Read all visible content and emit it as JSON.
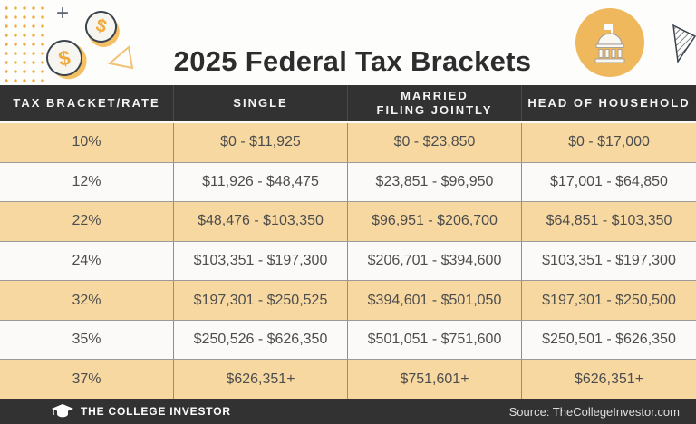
{
  "title": "2025 Federal Tax Brackets",
  "table": {
    "columns": [
      "TAX BRACKET/RATE",
      "SINGLE",
      "MARRIED\nFILING JOINTLY",
      "HEAD OF HOUSEHOLD"
    ],
    "rows": [
      {
        "rate": "10%",
        "single": "$0 - $11,925",
        "married_filing_jointly": "$0 - $23,850",
        "head_of_household": "$0 - $17,000"
      },
      {
        "rate": "12%",
        "single": "$11,926 - $48,475",
        "married_filing_jointly": "$23,851 - $96,950",
        "head_of_household": "$17,001 - $64,850"
      },
      {
        "rate": "22%",
        "single": "$48,476 - $103,350",
        "married_filing_jointly": "$96,951 - $206,700",
        "head_of_household": "$64,851 - $103,350"
      },
      {
        "rate": "24%",
        "single": "$103,351 - $197,300",
        "married_filing_jointly": "$206,701 - $394,600",
        "head_of_household": "$103,351 - $197,300"
      },
      {
        "rate": "32%",
        "single": "$197,301 - $250,525",
        "married_filing_jointly": "$394,601 - $501,050",
        "head_of_household": "$197,301 - $250,500"
      },
      {
        "rate": "35%",
        "single": "$250,526 - $626,350",
        "married_filing_jointly": "$501,051 - $751,600",
        "head_of_household": "$250,501 - $626,350"
      },
      {
        "rate": "37%",
        "single": "$626,351+",
        "married_filing_jointly": "$751,601+",
        "head_of_household": "$626,351+"
      }
    ]
  },
  "chart_data": {
    "type": "table",
    "title": "2025 Federal Tax Brackets",
    "columns": [
      "TAX BRACKET/RATE",
      "SINGLE",
      "MARRIED FILING JOINTLY",
      "HEAD OF HOUSEHOLD"
    ],
    "rows": [
      [
        "10%",
        "$0 - $11,925",
        "$0 - $23,850",
        "$0 - $17,000"
      ],
      [
        "12%",
        "$11,926 - $48,475",
        "$23,851 - $96,950",
        "$17,001 - $64,850"
      ],
      [
        "22%",
        "$48,476 - $103,350",
        "$96,951 - $206,700",
        "$64,851 - $103,350"
      ],
      [
        "24%",
        "$103,351 - $197,300",
        "$206,701 - $394,600",
        "$103,351 - $197,300"
      ],
      [
        "32%",
        "$197,301 - $250,525",
        "$394,601 - $501,050",
        "$197,301 - $250,500"
      ],
      [
        "35%",
        "$250,526 - $626,350",
        "$501,051 - $751,600",
        "$250,501 - $626,350"
      ],
      [
        "37%",
        "$626,351+",
        "$751,601+",
        "$626,351+"
      ]
    ]
  },
  "footer": {
    "brand": "THE COLLEGE INVESTOR",
    "source": "Source: TheCollegeInvestor.com"
  },
  "icons": {
    "coin_dollar": "$",
    "plus": "+",
    "capitol": "capitol-building-icon",
    "graduation_cap": "graduation-cap-icon",
    "hatched_triangle": "hatched-triangle-icon",
    "triangle_outline": "triangle-outline-icon",
    "dot_grid": "dot-grid-pattern"
  },
  "colors": {
    "accent_orange": "#F2A93C",
    "circle_orange": "#F0B85C",
    "coin_shadow": "#F5C063",
    "row_tan": "#F7D8A1",
    "row_white": "#FBFAF8",
    "bar_dark": "#323232",
    "title_text": "#2D2D2D",
    "cell_text": "#4D4D4D",
    "divider_gray": "#8F8F8F"
  }
}
